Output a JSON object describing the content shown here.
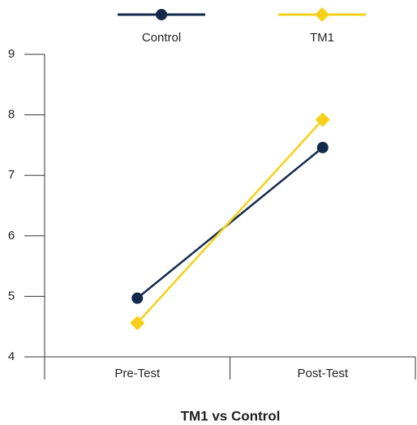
{
  "chart_data": {
    "type": "line",
    "title": "TM1 vs Control",
    "categories": [
      "Pre-Test",
      "Post-Test"
    ],
    "series": [
      {
        "name": "Control",
        "color": "#13294b",
        "marker": "circle",
        "values": [
          4.97,
          7.46
        ]
      },
      {
        "name": "TM1",
        "color": "#f7d117",
        "marker": "diamond",
        "values": [
          4.56,
          7.92
        ]
      }
    ],
    "ylim": [
      4,
      9
    ],
    "yticks": [
      4,
      5,
      6,
      7,
      8,
      9
    ],
    "legend": "top"
  }
}
